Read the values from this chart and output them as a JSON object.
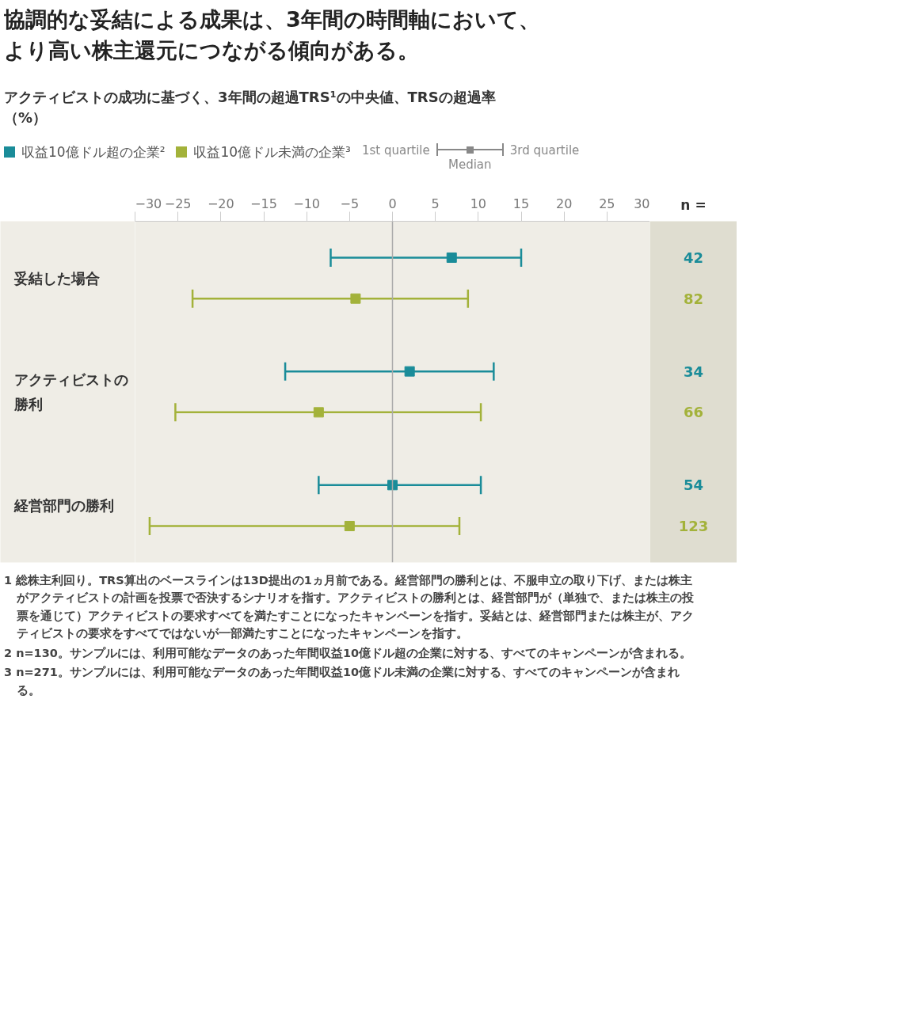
{
  "chart_data": {
    "type": "scatter",
    "orientation": "horizontal",
    "title": "協調的な妥結による成果は、3年間の時間軸において、より高い株主還元につながる傾向がある。",
    "subtitle": "アクティビストの成功に基づく、3年間の超過TRS¹の中央値、TRSの超過率（%）",
    "categories": [
      "妥結した場合",
      "アクティビストの勝利",
      "経営部門の勝利"
    ],
    "series": [
      {
        "name": "収益10億ドル超の企業²",
        "color": "#1a8c99",
        "values": [
          6.9,
          2.0,
          0
        ],
        "errors": [
          [
            -7.2,
            15.0
          ],
          [
            -12.5,
            11.8
          ],
          [
            -8.6,
            10.3
          ]
        ]
      },
      {
        "name": "収益10億ドル未満の企業³",
        "color": "#a3b23a",
        "values": [
          -4.3,
          -8.6,
          -5.0
        ],
        "errors": [
          [
            -23.3,
            8.8
          ],
          [
            -25.3,
            10.3
          ],
          [
            -28.3,
            7.8
          ]
        ]
      }
    ],
    "xlim": [
      -30,
      30
    ],
    "xticks": [
      {
        "value": -30,
        "label": "−30"
      },
      {
        "value": -25,
        "label": "−25"
      },
      {
        "value": -20,
        "label": "−20"
      },
      {
        "value": -15,
        "label": "−15"
      },
      {
        "value": -10,
        "label": "−10"
      },
      {
        "value": -5,
        "label": "−5"
      },
      {
        "value": 0,
        "label": "0"
      },
      {
        "value": 5,
        "label": "5"
      },
      {
        "value": 10,
        "label": "10"
      },
      {
        "value": 15,
        "label": "15"
      },
      {
        "value": 20,
        "label": "20"
      },
      {
        "value": 25,
        "label": "25"
      },
      {
        "value": 30,
        "label": "30"
      }
    ],
    "ref_lines": [
      {
        "axis": "x",
        "value": 0,
        "color": "#aaaaaa"
      }
    ],
    "marker": "square",
    "legend": "top",
    "annotations": [
      "n =",
      "1st quartile",
      "Median",
      "3rd quartile",
      "42",
      "82",
      "34",
      "66",
      "54",
      "123",
      "1 総株主利回り。TRS算出のベースラインは13D提出の1ヵ月前である。経営部門の勝利とは、不服申立の取り下げ、または株主がアクティビストの計画を投票で否決するシナリオを指す。アクティビストの勝利とは、経営部門が（単独で、または株主の投票を通じて）アクティビストの要求すべてを満たすことになったキャンペーンを指す。妥結とは、経営部門または株主が、アクティビストの要求をすべてではないが一部満たすことになったキャンペーンを指す。",
      "2 n=130。サンプルには、利用可能なデータのあった年間収益10億ドル超の企業に対する、すべてのキャンペーンが含まれる。",
      "3 n=271。サンプルには、利用可能なデータのあった年間収益10億ドル未満の企業に対する、すべてのキャンペーンが含まれる。"
    ]
  }
}
